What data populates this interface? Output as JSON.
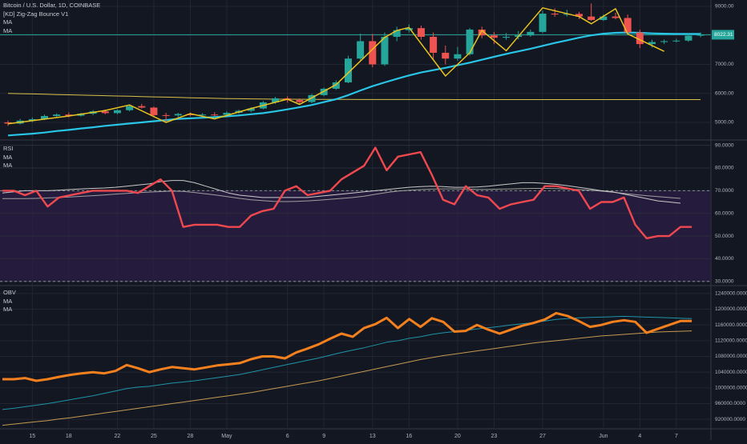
{
  "colors": {
    "background": "#131722",
    "grid": "#232632",
    "separator": "#363a45",
    "axis_text": "#b2b5be",
    "up": "#26a69a",
    "down": "#ef5350",
    "zigzag": "#e8c320",
    "ma_price": "#29c5e6",
    "long_ma": "#d9c14a",
    "price_line": "#26a69a",
    "rsi": "#f0484f",
    "rsi_ma1": "#c9c9c9",
    "rsi_ma2": "#9e9e9e",
    "rsi_band": "#2a1e45",
    "obv": "#f5801e",
    "obv_ma1": "#1f93a8",
    "obv_ma2": "#c49a50"
  },
  "legend": {
    "price": [
      "Bitcoin / U.S. Dollar, 1D, COINBASE",
      "[KD] Zig-Zag Bounce V1",
      "MA",
      "MA"
    ],
    "rsi": [
      "RSI",
      "MA",
      "MA"
    ],
    "obv": [
      "OBV",
      "MA",
      "MA"
    ]
  },
  "chart_data": [
    {
      "type": "candlestick",
      "title": "Bitcoin / U.S. Dollar, 1D, COINBASE",
      "ylim": [
        4420,
        9220
      ],
      "ticks": [
        5000,
        6000,
        7000,
        8000,
        9000
      ],
      "tick_labels": [
        "5000.00",
        "6000.00",
        "7000.00",
        "8000.00",
        "9000.00"
      ],
      "last_price_label": "8022.31",
      "last_price": 8022,
      "x_tick_labels": [
        {
          "i": 2,
          "label": "15"
        },
        {
          "i": 5,
          "label": "18"
        },
        {
          "i": 9,
          "label": "22"
        },
        {
          "i": 12,
          "label": "25"
        },
        {
          "i": 15,
          "label": "28"
        },
        {
          "i": 18,
          "label": "May"
        },
        {
          "i": 23,
          "label": "6"
        },
        {
          "i": 26,
          "label": "9"
        },
        {
          "i": 30,
          "label": "13"
        },
        {
          "i": 33,
          "label": "16"
        },
        {
          "i": 37,
          "label": "20"
        },
        {
          "i": 40,
          "label": "23"
        },
        {
          "i": 44,
          "label": "27"
        },
        {
          "i": 49,
          "label": "Jun"
        },
        {
          "i": 52,
          "label": "4"
        },
        {
          "i": 55,
          "label": "7"
        }
      ],
      "candles": [
        {
          "o": 5000,
          "h": 5060,
          "l": 4880,
          "c": 4960
        },
        {
          "o": 4960,
          "h": 5120,
          "l": 4930,
          "c": 5060
        },
        {
          "o": 5060,
          "h": 5170,
          "l": 5010,
          "c": 5110
        },
        {
          "o": 5110,
          "h": 5270,
          "l": 5080,
          "c": 5220
        },
        {
          "o": 5220,
          "h": 5310,
          "l": 5160,
          "c": 5270
        },
        {
          "o": 5270,
          "h": 5340,
          "l": 5170,
          "c": 5230
        },
        {
          "o": 5230,
          "h": 5330,
          "l": 5200,
          "c": 5300
        },
        {
          "o": 5300,
          "h": 5420,
          "l": 5250,
          "c": 5380
        },
        {
          "o": 5380,
          "h": 5440,
          "l": 5280,
          "c": 5320
        },
        {
          "o": 5320,
          "h": 5450,
          "l": 5280,
          "c": 5420
        },
        {
          "o": 5420,
          "h": 5620,
          "l": 5380,
          "c": 5560
        },
        {
          "o": 5560,
          "h": 5640,
          "l": 5480,
          "c": 5510
        },
        {
          "o": 5510,
          "h": 5540,
          "l": 5210,
          "c": 5250
        },
        {
          "o": 5250,
          "h": 5330,
          "l": 4980,
          "c": 5240
        },
        {
          "o": 5240,
          "h": 5330,
          "l": 5170,
          "c": 5290
        },
        {
          "o": 5290,
          "h": 5340,
          "l": 5210,
          "c": 5250
        },
        {
          "o": 5250,
          "h": 5320,
          "l": 5180,
          "c": 5270
        },
        {
          "o": 5270,
          "h": 5350,
          "l": 5220,
          "c": 5260
        },
        {
          "o": 5260,
          "h": 5380,
          "l": 5230,
          "c": 5330
        },
        {
          "o": 5330,
          "h": 5440,
          "l": 5290,
          "c": 5400
        },
        {
          "o": 5400,
          "h": 5520,
          "l": 5350,
          "c": 5480
        },
        {
          "o": 5480,
          "h": 5740,
          "l": 5450,
          "c": 5690
        },
        {
          "o": 5690,
          "h": 5880,
          "l": 5640,
          "c": 5830
        },
        {
          "o": 5830,
          "h": 5900,
          "l": 5680,
          "c": 5770
        },
        {
          "o": 5770,
          "h": 5830,
          "l": 5640,
          "c": 5700
        },
        {
          "o": 5700,
          "h": 5980,
          "l": 5660,
          "c": 5940
        },
        {
          "o": 5940,
          "h": 6200,
          "l": 5900,
          "c": 6160
        },
        {
          "o": 6160,
          "h": 6450,
          "l": 6120,
          "c": 6380
        },
        {
          "o": 6380,
          "h": 7300,
          "l": 6350,
          "c": 7200
        },
        {
          "o": 7200,
          "h": 8060,
          "l": 7150,
          "c": 7800
        },
        {
          "o": 7800,
          "h": 8050,
          "l": 6900,
          "c": 7000
        },
        {
          "o": 7000,
          "h": 8100,
          "l": 6950,
          "c": 7950
        },
        {
          "o": 7950,
          "h": 8300,
          "l": 7800,
          "c": 8180
        },
        {
          "o": 8180,
          "h": 8380,
          "l": 8100,
          "c": 8250
        },
        {
          "o": 8250,
          "h": 8340,
          "l": 7850,
          "c": 7950
        },
        {
          "o": 7950,
          "h": 8100,
          "l": 7150,
          "c": 7400
        },
        {
          "o": 7400,
          "h": 7650,
          "l": 7000,
          "c": 7200
        },
        {
          "o": 7200,
          "h": 7600,
          "l": 7120,
          "c": 7350
        },
        {
          "o": 7350,
          "h": 8250,
          "l": 7300,
          "c": 8200
        },
        {
          "o": 8200,
          "h": 8300,
          "l": 7900,
          "c": 8000
        },
        {
          "o": 8000,
          "h": 8120,
          "l": 7700,
          "c": 7920
        },
        {
          "o": 7920,
          "h": 8080,
          "l": 7850,
          "c": 7950
        },
        {
          "o": 7950,
          "h": 8150,
          "l": 7860,
          "c": 8000
        },
        {
          "o": 8000,
          "h": 8200,
          "l": 7950,
          "c": 8120
        },
        {
          "o": 8120,
          "h": 8850,
          "l": 8080,
          "c": 8750
        },
        {
          "o": 8750,
          "h": 8930,
          "l": 8640,
          "c": 8720
        },
        {
          "o": 8720,
          "h": 8880,
          "l": 8650,
          "c": 8740
        },
        {
          "o": 8740,
          "h": 8810,
          "l": 8560,
          "c": 8650
        },
        {
          "o": 8650,
          "h": 9100,
          "l": 8500,
          "c": 8530
        },
        {
          "o": 8530,
          "h": 8720,
          "l": 8500,
          "c": 8650
        },
        {
          "o": 8650,
          "h": 8780,
          "l": 8550,
          "c": 8600
        },
        {
          "o": 8600,
          "h": 8720,
          "l": 8050,
          "c": 8100
        },
        {
          "o": 8100,
          "h": 8200,
          "l": 7560,
          "c": 7700
        },
        {
          "o": 7700,
          "h": 7850,
          "l": 7580,
          "c": 7770
        },
        {
          "o": 7770,
          "h": 7860,
          "l": 7700,
          "c": 7800
        },
        {
          "o": 7800,
          "h": 7880,
          "l": 7760,
          "c": 7820
        },
        {
          "o": 7820,
          "h": 8050,
          "l": 7780,
          "c": 7990
        },
        {
          "o": 7990,
          "h": 8100,
          "l": 7940,
          "c": 8022
        }
      ],
      "zigzag": [
        {
          "i": 0,
          "v": 4950
        },
        {
          "i": 5,
          "v": 5220
        },
        {
          "i": 8,
          "v": 5410
        },
        {
          "i": 10,
          "v": 5600
        },
        {
          "i": 13,
          "v": 5000
        },
        {
          "i": 15,
          "v": 5300
        },
        {
          "i": 17,
          "v": 5120
        },
        {
          "i": 20,
          "v": 5480
        },
        {
          "i": 23,
          "v": 5800
        },
        {
          "i": 24,
          "v": 5620
        },
        {
          "i": 27,
          "v": 6300
        },
        {
          "i": 31,
          "v": 7930
        },
        {
          "i": 32,
          "v": 8170
        },
        {
          "i": 33,
          "v": 8270
        },
        {
          "i": 36,
          "v": 6600
        },
        {
          "i": 38,
          "v": 7400
        },
        {
          "i": 39,
          "v": 8170
        },
        {
          "i": 41,
          "v": 7470
        },
        {
          "i": 44,
          "v": 8950
        },
        {
          "i": 47,
          "v": 8650
        },
        {
          "i": 48,
          "v": 8400
        },
        {
          "i": 50,
          "v": 8920
        },
        {
          "i": 51,
          "v": 8050
        },
        {
          "i": 54,
          "v": 7450
        }
      ],
      "ma_fast": [
        4550,
        4580,
        4610,
        4650,
        4700,
        4740,
        4790,
        4830,
        4880,
        4920,
        4960,
        5000,
        5040,
        5080,
        5120,
        5140,
        5160,
        5180,
        5210,
        5240,
        5280,
        5320,
        5380,
        5450,
        5520,
        5600,
        5700,
        5800,
        5940,
        6100,
        6250,
        6380,
        6500,
        6620,
        6720,
        6800,
        6880,
        6970,
        7060,
        7160,
        7260,
        7360,
        7450,
        7540,
        7640,
        7740,
        7830,
        7920,
        8000,
        8060,
        8090,
        8100,
        8090,
        8070,
        8060,
        8050,
        8050,
        8050
      ],
      "ma_slow": [
        6000,
        5990,
        5980,
        5970,
        5960,
        5950,
        5940,
        5930,
        5920,
        5910,
        5900,
        5890,
        5880,
        5870,
        5860,
        5850,
        5840,
        5830,
        5820,
        5815,
        5810,
        5805,
        5800,
        5798,
        5796,
        5794,
        5792,
        5790,
        5790,
        5789,
        5789,
        5788,
        5788,
        5788,
        5787,
        5787,
        5787,
        5786,
        5786,
        5786,
        5786,
        5786,
        5786,
        5786,
        5786,
        5786,
        5786,
        5786,
        5786,
        5786,
        5786,
        5786,
        5786,
        5786,
        5786,
        5786,
        5786,
        5786
      ]
    },
    {
      "type": "line",
      "title": "RSI",
      "ylim": [
        28.5,
        92
      ],
      "ticks": [
        30,
        40,
        50,
        60,
        70,
        80,
        90
      ],
      "tick_labels": [
        "30.0000",
        "40.0000",
        "50.0000",
        "60.0000",
        "70.0000",
        "80.0000",
        "90.0000"
      ],
      "band": [
        30,
        70
      ],
      "series": [
        {
          "values": [
            70,
            70,
            68,
            70,
            63,
            67,
            68,
            69,
            70,
            70,
            70,
            70,
            69,
            72,
            75,
            70,
            54,
            55,
            55,
            55,
            54,
            54,
            59,
            61,
            62,
            70,
            72,
            68,
            69,
            70,
            75,
            78,
            81,
            89,
            79,
            85,
            86,
            87,
            77,
            66,
            64,
            72,
            68,
            67,
            62,
            64,
            65,
            66,
            72,
            72,
            71,
            70,
            62,
            65,
            65,
            67,
            55,
            49,
            50,
            50,
            54,
            54
          ]
        },
        {
          "values": [
            69,
            69.5,
            70,
            70,
            70,
            70.2,
            70.5,
            70.8,
            71,
            71.2,
            71.5,
            72,
            72.5,
            73,
            74,
            74.5,
            74.5,
            73.5,
            72,
            70.5,
            69,
            68,
            67.5,
            67,
            67,
            67,
            67,
            67,
            67.5,
            68,
            68.5,
            69,
            69.5,
            70,
            70.5,
            71,
            71.5,
            71.8,
            72,
            71.8,
            71.5,
            71.5,
            71.6,
            72,
            72.5,
            73,
            73.5,
            73.5,
            73.2,
            72.8,
            72.2,
            71.5,
            70.8,
            70,
            69.5,
            68.5,
            67.5,
            66.5,
            65.5,
            65,
            64.5
          ]
        },
        {
          "values": [
            66.5,
            66.5,
            66.5,
            66.6,
            66.8,
            67,
            67.2,
            67.5,
            67.8,
            68.1,
            68.5,
            68.8,
            69.1,
            69.4,
            69.6,
            69.8,
            69.7,
            69.2,
            68.6,
            68,
            67.3,
            66.6,
            66,
            65.6,
            65.3,
            65.2,
            65.3,
            65.5,
            65.8,
            66.2,
            66.6,
            67,
            67.6,
            68.4,
            69.2,
            69.8,
            70.2,
            70.5,
            70.7,
            70.8,
            70.8,
            70.7,
            70.6,
            70.6,
            70.7,
            70.8,
            70.9,
            71,
            71,
            70.9,
            70.7,
            70.5,
            70.2,
            69.8,
            69.3,
            68.8,
            68.3,
            67.8,
            67.4,
            67,
            66.6
          ]
        }
      ]
    },
    {
      "type": "line",
      "title": "OBV",
      "ylim": [
        898000,
        1258000
      ],
      "ticks": [
        920000,
        960000,
        1000000,
        1040000,
        1080000,
        1120000,
        1160000,
        1200000,
        1240000
      ],
      "tick_labels": [
        "920000.0000",
        "960000.0000",
        "1000000.0000",
        "1040000.0000",
        "1080000.0000",
        "1120000.0000",
        "1160000.0000",
        "1200000.0000",
        "1240000.0000"
      ],
      "series": [
        {
          "values": [
            1022000,
            1022000,
            1025000,
            1018000,
            1022000,
            1028000,
            1033000,
            1037000,
            1040000,
            1037000,
            1043000,
            1058000,
            1050000,
            1040000,
            1047000,
            1053000,
            1050000,
            1047000,
            1052000,
            1057000,
            1060000,
            1063000,
            1073000,
            1080000,
            1080000,
            1075000,
            1090000,
            1100000,
            1111000,
            1125000,
            1138000,
            1130000,
            1152000,
            1162000,
            1178000,
            1152000,
            1175000,
            1155000,
            1177000,
            1168000,
            1143000,
            1145000,
            1160000,
            1148000,
            1138000,
            1148000,
            1158000,
            1165000,
            1174000,
            1190000,
            1183000,
            1170000,
            1155000,
            1160000,
            1168000,
            1172000,
            1168000,
            1140000,
            1150000,
            1160000,
            1170000,
            1170000
          ]
        },
        {
          "values": [
            945000,
            948000,
            952000,
            956000,
            960000,
            965000,
            970000,
            975000,
            980000,
            986000,
            992000,
            998000,
            1002000,
            1004000,
            1008000,
            1012000,
            1015000,
            1018000,
            1022000,
            1026000,
            1030000,
            1034000,
            1040000,
            1046000,
            1052000,
            1058000,
            1064000,
            1070000,
            1076000,
            1083000,
            1090000,
            1096000,
            1102000,
            1109000,
            1116000,
            1120000,
            1126000,
            1130000,
            1136000,
            1140000,
            1143000,
            1146000,
            1150000,
            1153000,
            1156000,
            1160000,
            1163000,
            1166000,
            1170000,
            1174000,
            1176000,
            1178000,
            1179000,
            1180000,
            1181000,
            1182000,
            1181000,
            1180000,
            1179000,
            1178000,
            1177000,
            1176000
          ]
        },
        {
          "values": [
            905000,
            908000,
            911000,
            914000,
            917000,
            921000,
            924000,
            928000,
            932000,
            936000,
            940000,
            944000,
            948000,
            952000,
            956000,
            960000,
            964000,
            968000,
            972000,
            976000,
            980000,
            984000,
            988000,
            993000,
            998000,
            1003000,
            1008000,
            1013000,
            1018000,
            1024000,
            1030000,
            1036000,
            1042000,
            1048000,
            1054000,
            1060000,
            1066000,
            1072000,
            1077000,
            1082000,
            1086000,
            1090000,
            1094000,
            1098000,
            1102000,
            1106000,
            1110000,
            1114000,
            1117000,
            1120000,
            1123000,
            1126000,
            1129000,
            1132000,
            1134000,
            1136000,
            1138000,
            1140000,
            1142000,
            1143000,
            1144000,
            1145000
          ]
        }
      ]
    }
  ]
}
